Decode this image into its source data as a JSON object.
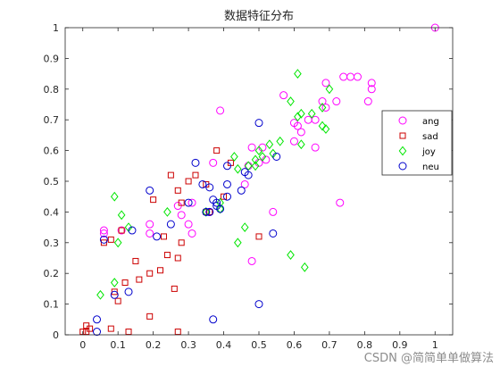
{
  "chart_data": {
    "type": "scatter",
    "title": "数据特征分布",
    "xlabel": "",
    "ylabel": "",
    "xlim": [
      -0.05,
      1.05
    ],
    "ylim": [
      0,
      1
    ],
    "xticks": [
      "0",
      "0.1",
      "0.2",
      "0.3",
      "0.4",
      "0.5",
      "0.6",
      "0.7",
      "0.8",
      "0.9",
      "1"
    ],
    "yticks": [
      "0",
      "0.1",
      "0.2",
      "0.3",
      "0.4",
      "0.5",
      "0.6",
      "0.7",
      "0.8",
      "0.9",
      "1"
    ],
    "grid": false,
    "legend_position": "right",
    "series": [
      {
        "name": "ang",
        "marker": "circle",
        "color": "#ff00ff",
        "points": [
          [
            1.0,
            1.0
          ],
          [
            0.82,
            0.82
          ],
          [
            0.82,
            0.8
          ],
          [
            0.74,
            0.84
          ],
          [
            0.76,
            0.84
          ],
          [
            0.78,
            0.84
          ],
          [
            0.69,
            0.82
          ],
          [
            0.81,
            0.76
          ],
          [
            0.72,
            0.76
          ],
          [
            0.57,
            0.78
          ],
          [
            0.68,
            0.76
          ],
          [
            0.69,
            0.74
          ],
          [
            0.39,
            0.73
          ],
          [
            0.64,
            0.7
          ],
          [
            0.66,
            0.7
          ],
          [
            0.6,
            0.69
          ],
          [
            0.61,
            0.68
          ],
          [
            0.62,
            0.66
          ],
          [
            0.6,
            0.63
          ],
          [
            0.66,
            0.61
          ],
          [
            0.48,
            0.61
          ],
          [
            0.51,
            0.61
          ],
          [
            0.37,
            0.56
          ],
          [
            0.47,
            0.55
          ],
          [
            0.5,
            0.56
          ],
          [
            0.52,
            0.57
          ],
          [
            0.46,
            0.49
          ],
          [
            0.31,
            0.43
          ],
          [
            0.27,
            0.42
          ],
          [
            0.28,
            0.39
          ],
          [
            0.36,
            0.4
          ],
          [
            0.3,
            0.36
          ],
          [
            0.31,
            0.33
          ],
          [
            0.19,
            0.36
          ],
          [
            0.19,
            0.33
          ],
          [
            0.11,
            0.34
          ],
          [
            0.06,
            0.34
          ],
          [
            0.06,
            0.33
          ],
          [
            0.54,
            0.4
          ],
          [
            0.73,
            0.43
          ],
          [
            0.48,
            0.24
          ]
        ]
      },
      {
        "name": "sad",
        "marker": "square",
        "color": "#cc0000",
        "points": [
          [
            0.38,
            0.6
          ],
          [
            0.42,
            0.56
          ],
          [
            0.32,
            0.52
          ],
          [
            0.25,
            0.52
          ],
          [
            0.3,
            0.5
          ],
          [
            0.35,
            0.49
          ],
          [
            0.27,
            0.47
          ],
          [
            0.4,
            0.45
          ],
          [
            0.2,
            0.44
          ],
          [
            0.28,
            0.43
          ],
          [
            0.36,
            0.4
          ],
          [
            0.35,
            0.4
          ],
          [
            0.11,
            0.34
          ],
          [
            0.23,
            0.32
          ],
          [
            0.08,
            0.31
          ],
          [
            0.06,
            0.3
          ],
          [
            0.5,
            0.32
          ],
          [
            0.28,
            0.3
          ],
          [
            0.24,
            0.26
          ],
          [
            0.27,
            0.25
          ],
          [
            0.15,
            0.24
          ],
          [
            0.22,
            0.21
          ],
          [
            0.19,
            0.2
          ],
          [
            0.16,
            0.18
          ],
          [
            0.12,
            0.17
          ],
          [
            0.09,
            0.14
          ],
          [
            0.26,
            0.15
          ],
          [
            0.1,
            0.11
          ],
          [
            0.08,
            0.02
          ],
          [
            0.19,
            0.06
          ],
          [
            0.01,
            0.03
          ],
          [
            0.02,
            0.02
          ],
          [
            0.01,
            0.01
          ],
          [
            0.0,
            0.01
          ],
          [
            0.13,
            0.01
          ],
          [
            0.27,
            0.01
          ]
        ]
      },
      {
        "name": "joy",
        "marker": "diamond",
        "color": "#00e600",
        "points": [
          [
            0.61,
            0.85
          ],
          [
            0.7,
            0.8
          ],
          [
            0.59,
            0.76
          ],
          [
            0.68,
            0.74
          ],
          [
            0.62,
            0.72
          ],
          [
            0.65,
            0.72
          ],
          [
            0.61,
            0.71
          ],
          [
            0.68,
            0.68
          ],
          [
            0.69,
            0.67
          ],
          [
            0.62,
            0.62
          ],
          [
            0.56,
            0.63
          ],
          [
            0.53,
            0.62
          ],
          [
            0.5,
            0.6
          ],
          [
            0.54,
            0.59
          ],
          [
            0.51,
            0.58
          ],
          [
            0.49,
            0.57
          ],
          [
            0.43,
            0.58
          ],
          [
            0.47,
            0.55
          ],
          [
            0.49,
            0.55
          ],
          [
            0.44,
            0.54
          ],
          [
            0.39,
            0.43
          ],
          [
            0.39,
            0.41
          ],
          [
            0.35,
            0.4
          ],
          [
            0.24,
            0.4
          ],
          [
            0.09,
            0.45
          ],
          [
            0.11,
            0.39
          ],
          [
            0.13,
            0.35
          ],
          [
            0.1,
            0.3
          ],
          [
            0.44,
            0.3
          ],
          [
            0.46,
            0.35
          ],
          [
            0.59,
            0.26
          ],
          [
            0.63,
            0.22
          ],
          [
            0.09,
            0.17
          ],
          [
            0.05,
            0.13
          ]
        ]
      },
      {
        "name": "neu",
        "marker": "circle",
        "color": "#0000cc",
        "points": [
          [
            0.5,
            0.69
          ],
          [
            0.55,
            0.58
          ],
          [
            0.32,
            0.56
          ],
          [
            0.41,
            0.55
          ],
          [
            0.46,
            0.53
          ],
          [
            0.47,
            0.52
          ],
          [
            0.34,
            0.49
          ],
          [
            0.36,
            0.48
          ],
          [
            0.41,
            0.49
          ],
          [
            0.45,
            0.47
          ],
          [
            0.41,
            0.45
          ],
          [
            0.37,
            0.44
          ],
          [
            0.19,
            0.47
          ],
          [
            0.21,
            0.32
          ],
          [
            0.3,
            0.43
          ],
          [
            0.38,
            0.43
          ],
          [
            0.38,
            0.42
          ],
          [
            0.39,
            0.41
          ],
          [
            0.35,
            0.4
          ],
          [
            0.36,
            0.4
          ],
          [
            0.25,
            0.36
          ],
          [
            0.14,
            0.34
          ],
          [
            0.06,
            0.31
          ],
          [
            0.09,
            0.13
          ],
          [
            0.54,
            0.33
          ],
          [
            0.13,
            0.14
          ],
          [
            0.04,
            0.05
          ],
          [
            0.37,
            0.05
          ],
          [
            0.5,
            0.1
          ],
          [
            0.04,
            0.01
          ]
        ]
      }
    ]
  },
  "watermark": "CSDN @简简单单做算法"
}
